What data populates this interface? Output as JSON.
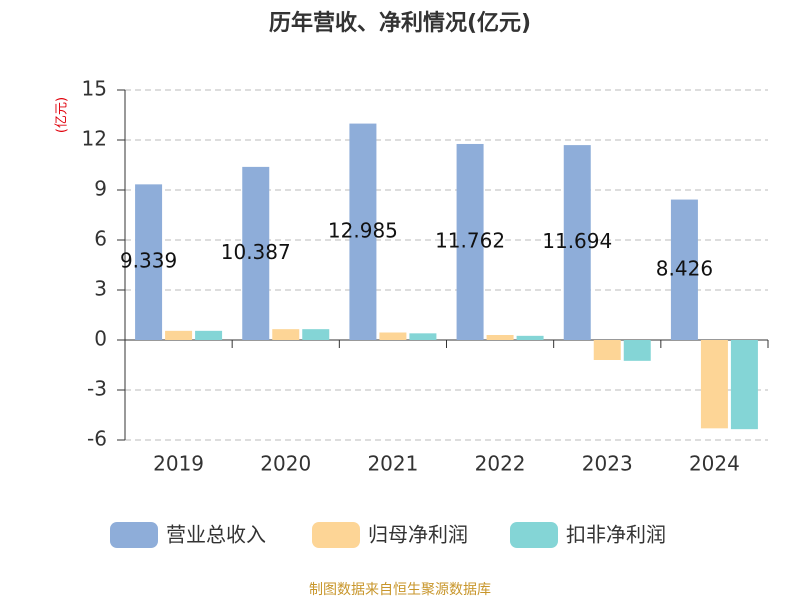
{
  "chart_data": {
    "type": "bar",
    "title": "历年营收、净利情况(亿元)",
    "y_label": "(亿元)",
    "categories": [
      "2019",
      "2020",
      "2021",
      "2022",
      "2023",
      "2024"
    ],
    "series": [
      {
        "name": "营业总收入",
        "color": "#8eadd9",
        "values": [
          9.339,
          10.387,
          12.985,
          11.762,
          11.694,
          8.426
        ],
        "show_labels": true
      },
      {
        "name": "归母净利润",
        "color": "#fdd596",
        "values": [
          0.55,
          0.65,
          0.45,
          0.3,
          -1.2,
          -5.3
        ]
      },
      {
        "name": "扣非净利润",
        "color": "#84d5d6",
        "values": [
          0.55,
          0.65,
          0.4,
          0.25,
          -1.25,
          -5.35
        ]
      }
    ],
    "ylim": [
      -6,
      15
    ],
    "yticks": [
      -6,
      -3,
      0,
      3,
      6,
      9,
      12,
      15
    ],
    "grid": true,
    "source": "制图数据来自恒生聚源数据库"
  }
}
